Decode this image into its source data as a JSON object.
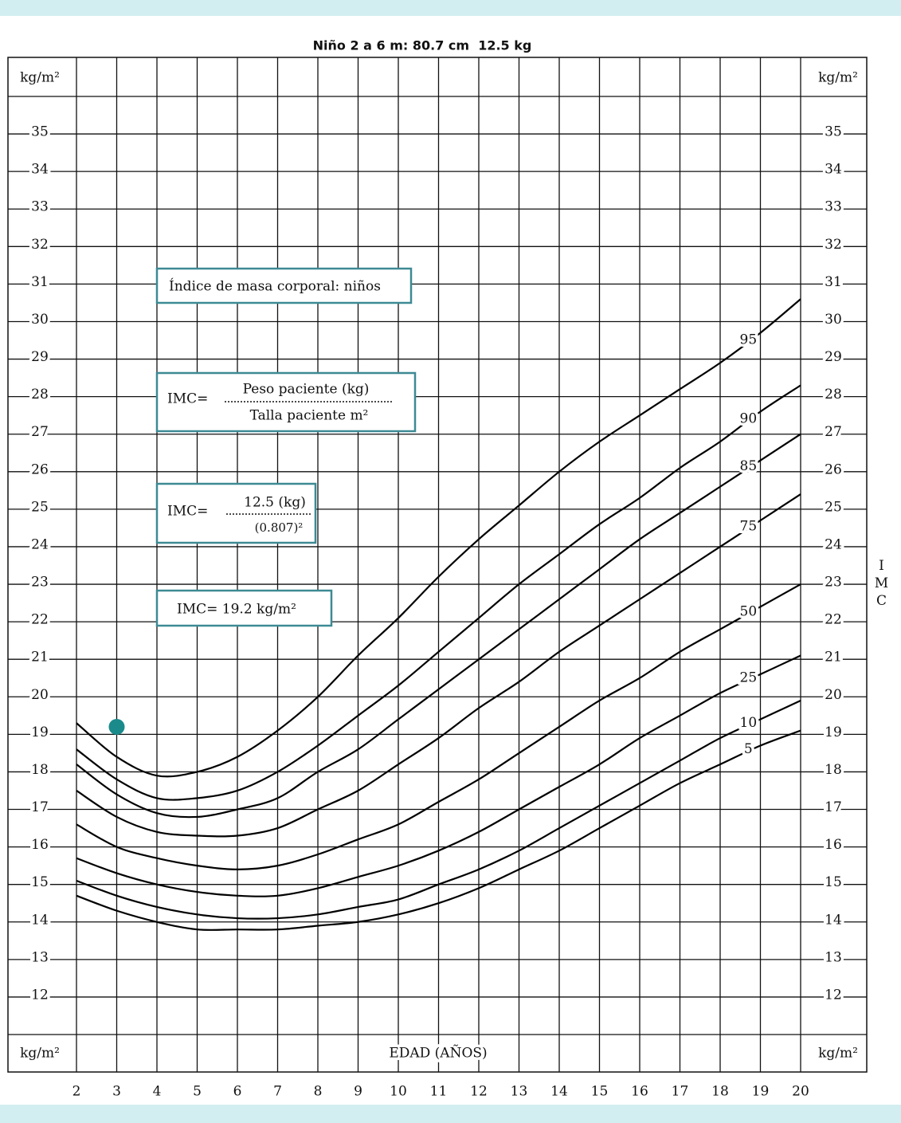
{
  "chart_data": {
    "type": "line",
    "title": "Niño 2 a 6 m: 80.7 cm  12.5 kg",
    "unit": "kg/m²",
    "x_label": "EDAD (AÑOS)",
    "y2_label": "IMC",
    "x": [
      2,
      3,
      4,
      5,
      6,
      7,
      8,
      9,
      10,
      11,
      12,
      13,
      14,
      15,
      16,
      17,
      18,
      19,
      20
    ],
    "xlim": [
      2,
      20
    ],
    "xticks": [
      2,
      3,
      4,
      5,
      6,
      7,
      8,
      9,
      10,
      11,
      12,
      13,
      14,
      15,
      16,
      17,
      18,
      19,
      20
    ],
    "ylim": [
      11,
      36
    ],
    "yticks": [
      12,
      13,
      14,
      15,
      16,
      17,
      18,
      19,
      20,
      21,
      22,
      23,
      24,
      25,
      26,
      27,
      28,
      29,
      30,
      31,
      32,
      33,
      34,
      35
    ],
    "grid": true,
    "series": [
      {
        "name": "95",
        "color": "#000000",
        "values": [
          19.3,
          18.4,
          17.9,
          18.0,
          18.4,
          19.1,
          20.0,
          21.1,
          22.1,
          23.2,
          24.2,
          25.1,
          26.0,
          26.8,
          27.5,
          28.2,
          28.9,
          29.7,
          30.6
        ]
      },
      {
        "name": "90",
        "color": "#000000",
        "values": [
          18.6,
          17.8,
          17.3,
          17.3,
          17.5,
          18.0,
          18.7,
          19.5,
          20.3,
          21.2,
          22.1,
          23.0,
          23.8,
          24.6,
          25.3,
          26.1,
          26.8,
          27.6,
          28.3
        ]
      },
      {
        "name": "85",
        "color": "#000000",
        "values": [
          18.2,
          17.4,
          16.9,
          16.8,
          17.0,
          17.3,
          18.0,
          18.6,
          19.4,
          20.2,
          21.0,
          21.8,
          22.6,
          23.4,
          24.2,
          24.9,
          25.6,
          26.3,
          27.0
        ]
      },
      {
        "name": "75",
        "color": "#000000",
        "values": [
          17.5,
          16.8,
          16.4,
          16.3,
          16.3,
          16.5,
          17.0,
          17.5,
          18.2,
          18.9,
          19.7,
          20.4,
          21.2,
          21.9,
          22.6,
          23.3,
          24.0,
          24.7,
          25.4
        ]
      },
      {
        "name": "50",
        "color": "#000000",
        "values": [
          16.6,
          16.0,
          15.7,
          15.5,
          15.4,
          15.5,
          15.8,
          16.2,
          16.6,
          17.2,
          17.8,
          18.5,
          19.2,
          19.9,
          20.5,
          21.2,
          21.8,
          22.4,
          23.0
        ]
      },
      {
        "name": "25",
        "color": "#000000",
        "values": [
          15.7,
          15.3,
          15.0,
          14.8,
          14.7,
          14.7,
          14.9,
          15.2,
          15.5,
          15.9,
          16.4,
          17.0,
          17.6,
          18.2,
          18.9,
          19.5,
          20.1,
          20.6,
          21.1
        ]
      },
      {
        "name": "10",
        "color": "#000000",
        "values": [
          15.1,
          14.7,
          14.4,
          14.2,
          14.1,
          14.1,
          14.2,
          14.4,
          14.6,
          15.0,
          15.4,
          15.9,
          16.5,
          17.1,
          17.7,
          18.3,
          18.9,
          19.4,
          19.9
        ]
      },
      {
        "name": "5",
        "color": "#000000",
        "values": [
          14.7,
          14.3,
          14.0,
          13.8,
          13.8,
          13.8,
          13.9,
          14.0,
          14.2,
          14.5,
          14.9,
          15.4,
          15.9,
          16.5,
          17.1,
          17.7,
          18.2,
          18.7,
          19.1
        ]
      }
    ],
    "point": {
      "x": 3,
      "y": 19.2,
      "color": "#1a8a8a"
    },
    "annotations": {
      "box_title": "Índice de masa corporal: niños",
      "formula_label": "IMC=",
      "formula_numerator": "Peso paciente (kg)",
      "formula_denominator": "Talla paciente m²",
      "calc_label": "IMC=",
      "calc_numerator": "12.5 (kg)",
      "calc_denominator": "(0.807)²",
      "result": "IMC= 19.2 kg/m²"
    }
  }
}
